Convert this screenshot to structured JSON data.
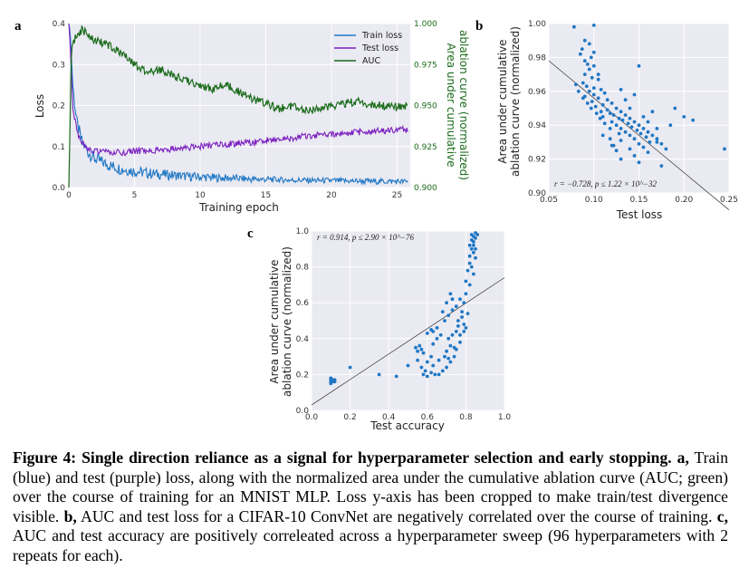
{
  "figure": {
    "caption_title": "Figure 4:  Single direction reliance as a signal for hyperparameter selection and early stopping.",
    "caption_parts": [
      {
        "bold": "a,",
        "text": " Train (blue) and test (purple) loss, along with the normalized area under the cumulative ablation curve (AUC; green) over the course of training for an MNIST MLP. Loss y-axis has been cropped to make train/test divergence visible. "
      },
      {
        "bold": "b,",
        "text": " AUC and test loss for a CIFAR-10 ConvNet are negatively correlated over the course of training. "
      },
      {
        "bold": "c,",
        "text": " AUC and test accuracy are positively correleated across a hyperparameter sweep (96 hyperparameters with 2 repeats for each)."
      }
    ]
  },
  "colors": {
    "train": "#1f77c4",
    "test": "#7b1fbf",
    "auc": "#1a6b1a",
    "scatter": "#1f77c4",
    "fit": "#333333",
    "panel_bg": "#eaeaf2"
  },
  "chart_data": [
    {
      "panel": "a",
      "type": "line",
      "xlabel": "Training epoch",
      "ylabel": "Loss",
      "ylabel_right": "Area under cumulative ablation curve (normalized)",
      "ylabel_right_lines": [
        "Area under cumulative",
        "ablation curve (normalized)"
      ],
      "xlim": [
        0,
        26
      ],
      "ylim": [
        0,
        0.4
      ],
      "ylim_right": [
        0.9,
        1.0
      ],
      "xticks": [
        0,
        5,
        10,
        15,
        20,
        25
      ],
      "yticks": [
        0.0,
        0.1,
        0.2,
        0.3,
        0.4
      ],
      "yticks_right": [
        0.9,
        0.925,
        0.95,
        0.975,
        1.0
      ],
      "ytick_labels": [
        "0.0",
        "0.1",
        "0.2",
        "0.3",
        "0.4"
      ],
      "ytick_labels_right": [
        "0.900",
        "0.925",
        "0.950",
        "0.975",
        "1.000"
      ],
      "legend": [
        "Train loss",
        "Test loss",
        "AUC"
      ],
      "legend_position": "upper-right",
      "series": [
        {
          "name": "Train loss",
          "axis": "left",
          "x": [
            0,
            0.1,
            0.3,
            0.6,
            1,
            1.5,
            2,
            3,
            4,
            5,
            6,
            7,
            8,
            9,
            10,
            11,
            12,
            13,
            14,
            15,
            16,
            17,
            18,
            19,
            20,
            21,
            22,
            23,
            24,
            25,
            25.8
          ],
          "y": [
            0.4,
            0.38,
            0.25,
            0.16,
            0.11,
            0.085,
            0.07,
            0.055,
            0.045,
            0.04,
            0.035,
            0.032,
            0.03,
            0.027,
            0.026,
            0.024,
            0.023,
            0.022,
            0.02,
            0.02,
            0.019,
            0.018,
            0.018,
            0.017,
            0.017,
            0.016,
            0.016,
            0.015,
            0.015,
            0.015,
            0.014
          ]
        },
        {
          "name": "Test loss",
          "axis": "left",
          "x": [
            0,
            0.1,
            0.3,
            0.6,
            1,
            1.5,
            2,
            3,
            4,
            5,
            6,
            7,
            8,
            9,
            10,
            11,
            12,
            13,
            14,
            15,
            16,
            17,
            18,
            19,
            20,
            21,
            22,
            23,
            24,
            25,
            25.8
          ],
          "y": [
            0.4,
            0.35,
            0.2,
            0.14,
            0.11,
            0.095,
            0.09,
            0.085,
            0.085,
            0.088,
            0.09,
            0.092,
            0.095,
            0.098,
            0.1,
            0.103,
            0.105,
            0.108,
            0.11,
            0.115,
            0.118,
            0.12,
            0.125,
            0.128,
            0.13,
            0.132,
            0.135,
            0.137,
            0.138,
            0.14,
            0.142
          ]
        },
        {
          "name": "AUC",
          "axis": "right",
          "x": [
            0,
            0.2,
            0.5,
            1,
            1.5,
            2,
            3,
            4,
            5,
            6,
            7,
            8,
            9,
            10,
            11,
            12,
            13,
            14,
            15,
            16,
            17,
            18,
            19,
            20,
            21,
            22,
            23,
            24,
            25,
            25.8
          ],
          "y": [
            0.9,
            0.985,
            0.992,
            0.996,
            0.993,
            0.99,
            0.987,
            0.982,
            0.975,
            0.97,
            0.972,
            0.968,
            0.965,
            0.962,
            0.96,
            0.963,
            0.958,
            0.954,
            0.951,
            0.948,
            0.95,
            0.947,
            0.948,
            0.949,
            0.951,
            0.953,
            0.95,
            0.95,
            0.949,
            0.95
          ]
        }
      ]
    },
    {
      "panel": "b",
      "type": "scatter",
      "xlabel": "Test loss",
      "ylabel": "Area under cumulative ablation curve (normalized)",
      "ylabel_lines": [
        "Area under cumulative",
        "ablation curve (normalized)"
      ],
      "xlim": [
        0.05,
        0.25
      ],
      "ylim": [
        0.9,
        1.0
      ],
      "xticks": [
        0.05,
        0.1,
        0.15,
        0.2,
        0.25
      ],
      "xtick_labels": [
        "0.05",
        "0.10",
        "0.15",
        "0.20",
        "0.25"
      ],
      "yticks": [
        0.9,
        0.92,
        0.94,
        0.96,
        0.98,
        1.0
      ],
      "ytick_labels": [
        "0.90",
        "0.92",
        "0.94",
        "0.96",
        "0.98",
        "1.00"
      ],
      "annotation": "r = −0.728, p ≤ 1.22 × 10^−32",
      "fit_line": {
        "x": [
          0.05,
          0.25
        ],
        "y": [
          0.978,
          0.89
        ]
      },
      "points": [
        [
          0.078,
          0.998
        ],
        [
          0.1,
          0.999
        ],
        [
          0.09,
          0.99
        ],
        [
          0.095,
          0.988
        ],
        [
          0.087,
          0.985
        ],
        [
          0.1,
          0.983
        ],
        [
          0.085,
          0.982
        ],
        [
          0.09,
          0.978
        ],
        [
          0.093,
          0.976
        ],
        [
          0.1,
          0.975
        ],
        [
          0.095,
          0.973
        ],
        [
          0.09,
          0.97
        ],
        [
          0.098,
          0.968
        ],
        [
          0.105,
          0.967
        ],
        [
          0.088,
          0.965
        ],
        [
          0.092,
          0.963
        ],
        [
          0.1,
          0.962
        ],
        [
          0.108,
          0.961
        ],
        [
          0.095,
          0.96
        ],
        [
          0.112,
          0.959
        ],
        [
          0.1,
          0.958
        ],
        [
          0.09,
          0.957
        ],
        [
          0.105,
          0.956
        ],
        [
          0.115,
          0.955
        ],
        [
          0.098,
          0.954
        ],
        [
          0.12,
          0.953
        ],
        [
          0.11,
          0.952
        ],
        [
          0.102,
          0.951
        ],
        [
          0.125,
          0.95
        ],
        [
          0.115,
          0.949
        ],
        [
          0.108,
          0.948
        ],
        [
          0.13,
          0.948
        ],
        [
          0.118,
          0.947
        ],
        [
          0.122,
          0.946
        ],
        [
          0.135,
          0.946
        ],
        [
          0.11,
          0.945
        ],
        [
          0.128,
          0.944
        ],
        [
          0.14,
          0.944
        ],
        [
          0.132,
          0.943
        ],
        [
          0.12,
          0.942
        ],
        [
          0.145,
          0.942
        ],
        [
          0.138,
          0.941
        ],
        [
          0.125,
          0.94
        ],
        [
          0.15,
          0.94
        ],
        [
          0.142,
          0.939
        ],
        [
          0.13,
          0.938
        ],
        [
          0.155,
          0.938
        ],
        [
          0.148,
          0.937
        ],
        [
          0.135,
          0.936
        ],
        [
          0.16,
          0.936
        ],
        [
          0.152,
          0.935
        ],
        [
          0.14,
          0.934
        ],
        [
          0.165,
          0.934
        ],
        [
          0.158,
          0.933
        ],
        [
          0.145,
          0.932
        ],
        [
          0.17,
          0.932
        ],
        [
          0.13,
          0.931
        ],
        [
          0.162,
          0.93
        ],
        [
          0.15,
          0.929
        ],
        [
          0.175,
          0.929
        ],
        [
          0.12,
          0.928
        ],
        [
          0.155,
          0.927
        ],
        [
          0.14,
          0.926
        ],
        [
          0.18,
          0.926
        ],
        [
          0.125,
          0.925
        ],
        [
          0.16,
          0.924
        ],
        [
          0.145,
          0.922
        ],
        [
          0.13,
          0.92
        ],
        [
          0.15,
          0.918
        ],
        [
          0.175,
          0.916
        ],
        [
          0.128,
          0.935
        ],
        [
          0.118,
          0.938
        ],
        [
          0.112,
          0.941
        ],
        [
          0.107,
          0.944
        ],
        [
          0.103,
          0.947
        ],
        [
          0.097,
          0.95
        ],
        [
          0.093,
          0.953
        ],
        [
          0.088,
          0.956
        ],
        [
          0.083,
          0.96
        ],
        [
          0.08,
          0.964
        ],
        [
          0.15,
          0.975
        ],
        [
          0.17,
          0.93
        ],
        [
          0.2,
          0.945
        ],
        [
          0.21,
          0.943
        ],
        [
          0.245,
          0.926
        ],
        [
          0.19,
          0.95
        ],
        [
          0.185,
          0.94
        ],
        [
          0.165,
          0.948
        ],
        [
          0.14,
          0.95
        ],
        [
          0.135,
          0.955
        ],
        [
          0.155,
          0.945
        ],
        [
          0.16,
          0.942
        ],
        [
          0.118,
          0.932
        ],
        [
          0.11,
          0.934
        ],
        [
          0.122,
          0.928
        ],
        [
          0.17,
          0.938
        ],
        [
          0.145,
          0.958
        ],
        [
          0.13,
          0.961
        ],
        [
          0.105,
          0.97
        ],
        [
          0.097,
          0.98
        ]
      ]
    },
    {
      "panel": "c",
      "type": "scatter",
      "xlabel": "Test accuracy",
      "ylabel": "Area under cumulative ablation curve (normalized)",
      "ylabel_lines": [
        "Area under cumulative",
        "ablation curve (normalized)"
      ],
      "xlim": [
        0.0,
        1.0
      ],
      "ylim": [
        0.0,
        1.0
      ],
      "xticks": [
        0.0,
        0.2,
        0.4,
        0.6,
        0.8,
        1.0
      ],
      "xtick_labels": [
        "0.0",
        "0.2",
        "0.4",
        "0.6",
        "0.8",
        "1.0"
      ],
      "yticks": [
        0.0,
        0.2,
        0.4,
        0.6,
        0.8,
        1.0
      ],
      "ytick_labels": [
        "0.0",
        "0.2",
        "0.4",
        "0.6",
        "0.8",
        "1.0"
      ],
      "annotation": "r = 0.914, p ≤ 2.90 × 10^−76",
      "fit_line": {
        "x": [
          0.0,
          1.0
        ],
        "y": [
          0.03,
          0.74
        ]
      },
      "points": [
        [
          0.1,
          0.17
        ],
        [
          0.1,
          0.16
        ],
        [
          0.11,
          0.17
        ],
        [
          0.12,
          0.16
        ],
        [
          0.1,
          0.18
        ],
        [
          0.11,
          0.16
        ],
        [
          0.12,
          0.17
        ],
        [
          0.1,
          0.15
        ],
        [
          0.2,
          0.24
        ],
        [
          0.35,
          0.2
        ],
        [
          0.44,
          0.19
        ],
        [
          0.54,
          0.35
        ],
        [
          0.55,
          0.33
        ],
        [
          0.56,
          0.36
        ],
        [
          0.57,
          0.34
        ],
        [
          0.58,
          0.32
        ],
        [
          0.6,
          0.43
        ],
        [
          0.62,
          0.45
        ],
        [
          0.63,
          0.44
        ],
        [
          0.65,
          0.46
        ],
        [
          0.58,
          0.2
        ],
        [
          0.6,
          0.19
        ],
        [
          0.62,
          0.21
        ],
        [
          0.64,
          0.2
        ],
        [
          0.66,
          0.2
        ],
        [
          0.68,
          0.22
        ],
        [
          0.7,
          0.24
        ],
        [
          0.72,
          0.27
        ],
        [
          0.74,
          0.3
        ],
        [
          0.75,
          0.34
        ],
        [
          0.77,
          0.38
        ],
        [
          0.7,
          0.33
        ],
        [
          0.72,
          0.36
        ],
        [
          0.71,
          0.4
        ],
        [
          0.73,
          0.42
        ],
        [
          0.75,
          0.44
        ],
        [
          0.76,
          0.5
        ],
        [
          0.78,
          0.55
        ],
        [
          0.79,
          0.6
        ],
        [
          0.8,
          0.65
        ],
        [
          0.68,
          0.55
        ],
        [
          0.7,
          0.6
        ],
        [
          0.72,
          0.65
        ],
        [
          0.73,
          0.62
        ],
        [
          0.75,
          0.58
        ],
        [
          0.77,
          0.62
        ],
        [
          0.78,
          0.52
        ],
        [
          0.79,
          0.48
        ],
        [
          0.8,
          0.46
        ],
        [
          0.81,
          0.54
        ],
        [
          0.8,
          0.72
        ],
        [
          0.81,
          0.78
        ],
        [
          0.82,
          0.82
        ],
        [
          0.82,
          0.86
        ],
        [
          0.83,
          0.9
        ],
        [
          0.84,
          0.94
        ],
        [
          0.84,
          0.97
        ],
        [
          0.85,
          0.99
        ],
        [
          0.83,
          0.95
        ],
        [
          0.82,
          0.92
        ],
        [
          0.84,
          0.88
        ],
        [
          0.85,
          0.85
        ],
        [
          0.83,
          0.8
        ],
        [
          0.84,
          0.76
        ],
        [
          0.82,
          0.7
        ],
        [
          0.85,
          0.96
        ],
        [
          0.86,
          0.98
        ],
        [
          0.83,
          0.98
        ],
        [
          0.84,
          0.92
        ],
        [
          0.85,
          0.9
        ],
        [
          0.6,
          0.27
        ],
        [
          0.62,
          0.3
        ],
        [
          0.63,
          0.25
        ],
        [
          0.66,
          0.28
        ],
        [
          0.69,
          0.3
        ],
        [
          0.71,
          0.29
        ],
        [
          0.74,
          0.35
        ],
        [
          0.77,
          0.42
        ],
        [
          0.79,
          0.44
        ],
        [
          0.76,
          0.47
        ],
        [
          0.5,
          0.25
        ],
        [
          0.55,
          0.28
        ],
        [
          0.57,
          0.24
        ],
        [
          0.59,
          0.22
        ],
        [
          0.63,
          0.37
        ],
        [
          0.65,
          0.4
        ],
        [
          0.67,
          0.42
        ],
        [
          0.69,
          0.5
        ],
        [
          0.71,
          0.53
        ],
        [
          0.73,
          0.56
        ]
      ]
    }
  ]
}
